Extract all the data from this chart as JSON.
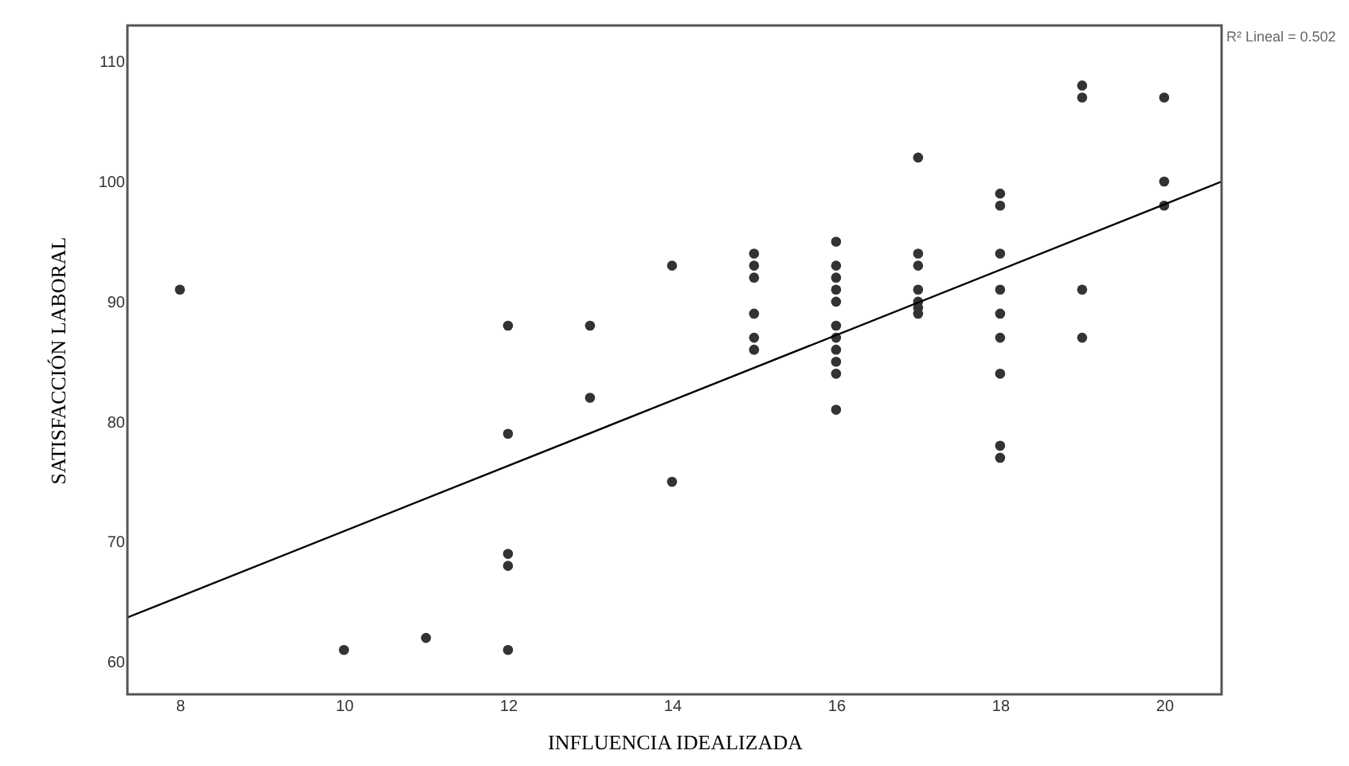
{
  "chart_data": {
    "type": "scatter",
    "xlabel": "INFLUENCIA IDEALIZADA",
    "ylabel": "SATISFACCIÓN LABORAL",
    "annotations": [
      "R² Lineal = 0.502"
    ],
    "xlim": [
      7.36,
      20.7
    ],
    "ylim": [
      57.3,
      113
    ],
    "xticks": [
      8,
      10,
      12,
      14,
      16,
      18,
      20
    ],
    "yticks": [
      60,
      70,
      80,
      90,
      100,
      110
    ],
    "series": [
      {
        "color": "#333333",
        "marker": "circle",
        "x": [
          8,
          10,
          11,
          12,
          12,
          12,
          12,
          12,
          13,
          13,
          14,
          14,
          15,
          15,
          15,
          15,
          15,
          15,
          16,
          16,
          16,
          16,
          16,
          16,
          16,
          16,
          16,
          16,
          16,
          17,
          17,
          17,
          17,
          17,
          17,
          17,
          18,
          18,
          18,
          18,
          18,
          18,
          18,
          18,
          18,
          19,
          19,
          19,
          19,
          20,
          20,
          20
        ],
        "values": [
          91,
          61,
          62,
          88,
          79,
          69,
          68,
          61,
          88,
          82,
          93,
          75,
          94,
          93,
          92,
          89,
          87,
          86,
          95,
          93,
          92,
          91,
          90,
          88,
          87,
          86,
          85,
          84,
          81,
          102,
          94,
          93,
          91,
          90,
          89.5,
          89,
          99,
          98,
          94,
          91,
          89,
          87,
          84,
          78,
          77,
          108,
          107,
          91,
          87,
          107,
          100,
          98
        ]
      },
      {
        "type": "line",
        "color": "#000000",
        "x": [
          7.36,
          20.7
        ],
        "values": [
          63.7,
          100.0
        ],
        "line_style": "solid"
      }
    ]
  }
}
